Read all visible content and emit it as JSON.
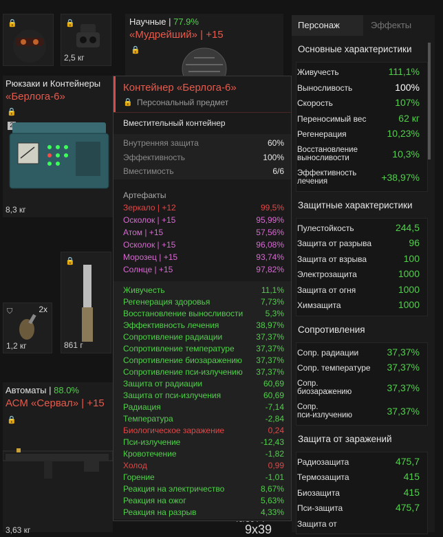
{
  "top_slots": {
    "slot2_weight": "2,5 кг"
  },
  "artifact_card": {
    "category": "Научные",
    "percent": "77.9%",
    "name": "«Мудрейший» | +15"
  },
  "backpack_slot": {
    "category": "Рюкзаки и Контейнеры",
    "name": "«Берлога-6»",
    "badge": "2",
    "weight": "8,3 кг"
  },
  "grenade_slot": {
    "count": "2x",
    "weight": "1,2 кг"
  },
  "knife_slot": {
    "weight": "861 г"
  },
  "weapon_slot": {
    "category": "Автоматы",
    "percent": "88.0%",
    "name": "АСМ «Сервал» | +15",
    "weight": "3,63 кг",
    "ammo_partial": "9x39",
    "ammo_partial_top": "40/30 / 7"
  },
  "tooltip": {
    "title": "Контейнер «Берлога-6»",
    "subtitle": "Персональный предмет",
    "type": "Вместительный контейнер",
    "props": [
      {
        "label": "Внутренняя защита",
        "value": "60%"
      },
      {
        "label": "Эффективность",
        "value": "100%"
      },
      {
        "label": "Вместимость",
        "value": "6/6"
      }
    ],
    "artifacts_header": "Артефакты",
    "artifacts": [
      {
        "label": "Зеркало | +12",
        "value": "99,5%",
        "color": "#e04848"
      },
      {
        "label": "Осколок | +15",
        "value": "95,99%",
        "color": "#d86ad2"
      },
      {
        "label": "Атом | +15",
        "value": "57,56%",
        "color": "#d86ad2"
      },
      {
        "label": "Осколок | +15",
        "value": "96,08%",
        "color": "#d86ad2"
      },
      {
        "label": "Морозец | +15",
        "value": "93,74%",
        "color": "#d86ad2"
      },
      {
        "label": "Солнце | +15",
        "value": "97,82%",
        "color": "#d86ad2"
      }
    ],
    "stats": [
      {
        "label": "Живучесть",
        "value": "11,1%",
        "color": "#52d04c"
      },
      {
        "label": "Регенерация здоровья",
        "value": "7,73%",
        "color": "#52d04c"
      },
      {
        "label": "Восстановление выносливости",
        "value": "5,3%",
        "color": "#52d04c"
      },
      {
        "label": "Эффективность лечения",
        "value": "38,97%",
        "color": "#52d04c"
      },
      {
        "label": "Сопротивление радиации",
        "value": "37,37%",
        "color": "#52d04c"
      },
      {
        "label": "Сопротивление температуре",
        "value": "37,37%",
        "color": "#52d04c"
      },
      {
        "label": "Сопротивление биозаражению",
        "value": "37,37%",
        "color": "#52d04c"
      },
      {
        "label": "Сопротивление пси-излучению",
        "value": "37,37%",
        "color": "#52d04c"
      },
      {
        "label": "Защита от радиации",
        "value": "60,69",
        "color": "#52d04c"
      },
      {
        "label": "Защита от пси-излучения",
        "value": "60,69",
        "color": "#52d04c"
      },
      {
        "label": "Радиация",
        "value": "-7,14",
        "color": "#52d04c"
      },
      {
        "label": "Температура",
        "value": "-2,84",
        "color": "#52d04c"
      },
      {
        "label": "Биологическое заражение",
        "value": "0,24",
        "color": "#e04848"
      },
      {
        "label": "Пси-излучение",
        "value": "-12,43",
        "color": "#52d04c"
      },
      {
        "label": "Кровотечение",
        "value": "-1,82",
        "color": "#52d04c"
      },
      {
        "label": "Холод",
        "value": "0,99",
        "color": "#e04848"
      },
      {
        "label": "Горение",
        "value": "-1,01",
        "color": "#52d04c"
      },
      {
        "label": "Реакция на электричество",
        "value": "8,67%",
        "color": "#52d04c"
      },
      {
        "label": "Реакция на ожог",
        "value": "5,63%",
        "color": "#52d04c"
      },
      {
        "label": "Реакция на разрыв",
        "value": "4,33%",
        "color": "#52d04c"
      }
    ]
  },
  "right_panel": {
    "tabs": [
      "Персонаж",
      "Эффекты"
    ],
    "sections": [
      {
        "title": "Основные характеристики",
        "rows": [
          {
            "label": "Живучесть",
            "value": "111,1%",
            "color": "#52d04c"
          },
          {
            "label": "Выносливость",
            "value": "100%",
            "color": "#ffffff"
          },
          {
            "label": "Скорость",
            "value": "107%",
            "color": "#52d04c"
          },
          {
            "label": "Переносимый вес",
            "value": "62 кг",
            "color": "#52d04c"
          },
          {
            "label": "Регенерация",
            "value": "10,23%",
            "color": "#52d04c"
          },
          {
            "label": "Восстановление выносливости",
            "value": "10,3%",
            "color": "#52d04c",
            "two_line": [
              "Восстановление",
              "выносливости"
            ]
          },
          {
            "label": "Эффективность лечения",
            "value": "+38,97%",
            "color": "#52d04c",
            "two_line": [
              "Эффективность",
              "лечения"
            ]
          }
        ]
      },
      {
        "title": "Защитные характеристики",
        "rows": [
          {
            "label": "Пулестойкость",
            "value": "244,5",
            "color": "#52d04c"
          },
          {
            "label": "Защита от разрыва",
            "value": "96",
            "color": "#52d04c"
          },
          {
            "label": "Защита от взрыва",
            "value": "100",
            "color": "#52d04c"
          },
          {
            "label": "Электрозащита",
            "value": "1000",
            "color": "#52d04c"
          },
          {
            "label": "Защита от огня",
            "value": "1000",
            "color": "#52d04c"
          },
          {
            "label": "Химзащита",
            "value": "1000",
            "color": "#52d04c"
          }
        ]
      },
      {
        "title": "Сопротивления",
        "rows": [
          {
            "label": "Сопр. радиации",
            "value": "37,37%",
            "color": "#52d04c"
          },
          {
            "label": "Сопр. температуре",
            "value": "37,37%",
            "color": "#52d04c"
          },
          {
            "label": "Сопр. биозаражению",
            "value": "37,37%",
            "color": "#52d04c",
            "two_line": [
              "Сопр.",
              "биозаражению"
            ]
          },
          {
            "label": "Сопр. пси-излучению",
            "value": "37,37%",
            "color": "#52d04c",
            "two_line": [
              "Сопр.",
              "пси-излучению"
            ]
          }
        ]
      },
      {
        "title": "Защита от заражений",
        "rows": [
          {
            "label": "Радиозащита",
            "value": "475,7",
            "color": "#52d04c"
          },
          {
            "label": "Термозащита",
            "value": "415",
            "color": "#52d04c"
          },
          {
            "label": "Биозащита",
            "value": "415",
            "color": "#52d04c"
          },
          {
            "label": "Пси-защита",
            "value": "475,7",
            "color": "#52d04c"
          },
          {
            "label": "Защита от",
            "value": "",
            "color": "#52d04c"
          }
        ]
      }
    ]
  }
}
